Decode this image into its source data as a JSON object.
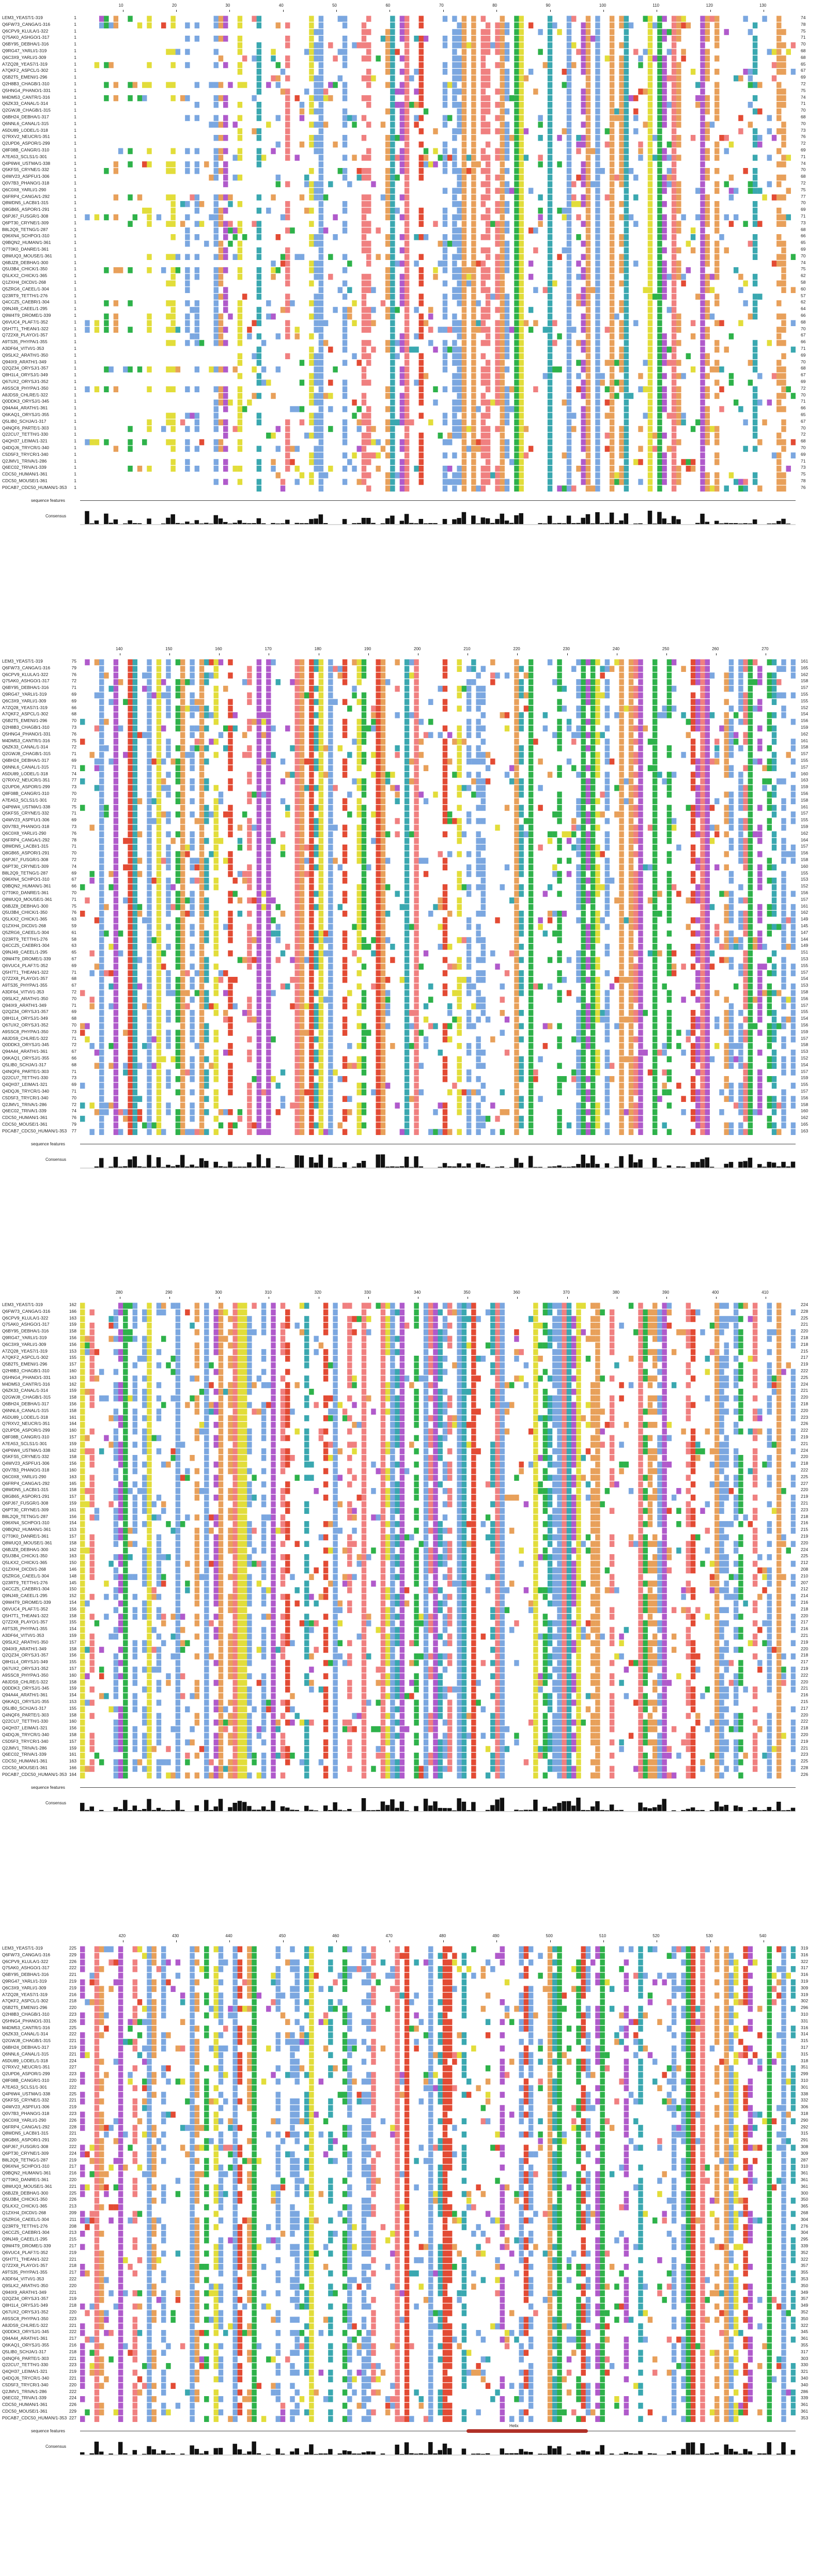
{
  "labels": {
    "sequence_features": "sequence features",
    "consensus": "Consensus",
    "helix": "Helix"
  },
  "colors": {
    "hydrophobic": "#7ba7e0",
    "positive": "#e34b34",
    "negative": "#b05acb",
    "polar": "#2eb24a",
    "cysteine": "#f08080",
    "glycine": "#e8a05a",
    "proline": "#e2dd3a",
    "aromatic": "#3aa8b0",
    "histogram": "#111111",
    "helix": "#b03028"
  },
  "sequences": [
    "LEM3_YEAST/1-319",
    "Q6FW73_CANGA/1-316",
    "Q6CPV9_KLULA/1-322",
    "Q75AK0_ASHGO/1-317",
    "Q6BY95_DEBHA/1-316",
    "Q9RG47_YARLI/1-319",
    "Q6C3X9_YARLI/1-309",
    "A7ZQ28_YEAS7/1-319",
    "A7QKF2_ASPCL/1-302",
    "Q5B2T5_EMENI/1-296",
    "Q2H8B3_CHAGB/1-310",
    "Q5HNG4_PHANO/1-331",
    "M4DM53_CANTR/1-316",
    "Q6ZK33_CANAL/1-314",
    "Q2GWJ8_CHAGB/1-315",
    "Q6BH24_DEBHA/1-317",
    "Q6NNL6_CANAL/1-315",
    "A5DU89_LODEL/1-318",
    "Q7RXV2_NEUCR/1-351",
    "Q2UPD6_ASPOR/1-299",
    "Q8F08B_CANGR/1-310",
    "A7EA53_SCLS1/1-301",
    "Q4P6W4_USTMA/1-338",
    "Q5KFS5_CRYNE/1-332",
    "Q4WV23_ASPFU/1-306",
    "Q0V7B3_PHANO/1-318",
    "Q6C0X8_YARLI/1-290",
    "Q6FRP4_CANGA/1-292",
    "Q8WDN5_LACBI/1-315",
    "Q8GB65_ASPOR/1-291",
    "Q6PJ67_FUSGR/1-308",
    "Q6PT30_CRYNE/1-309",
    "B8L2Q9_TETNG/1-287",
    "Q96XN4_SCHPO/1-310",
    "Q9BQN2_HUMAN/1-361",
    "Q7T0K0_DANRE/1-361",
    "Q8WUQ3_MOUSE/1-361",
    "Q6BJZ8_DEBHA/1-300",
    "Q5U3B4_CHICK/1-350",
    "Q5LKX2_CHICK/1-365",
    "Q1ZXH4_DICDI/1-268",
    "Q5ZRG6_CAEEL/1-304",
    "Q23RT9_TETTH/1-276",
    "Q4CCZ5_CAEBR/1-304",
    "Q9NJ49_CAEEL/1-295",
    "Q9W4T9_DROME/1-339",
    "Q6VUC4_PLAF7/1-352",
    "Q5H7T1_THEAN/1-322",
    "Q7Z2X8_PLAYO/1-357",
    "A9TS35_PHYPA/1-355",
    "A3DF64_VITVI/1-353",
    "Q9SLK2_ARATH/1-350",
    "Q94IX9_ARATH/1-349",
    "Q2QZ34_ORYSJ/1-357",
    "Q8H1L4_ORYSJ/1-349",
    "Q67UX2_ORYSJ/1-352",
    "A9SSC8_PHYPA/1-350",
    "A8JDS9_CHLRE/1-322",
    "Q0DDK3_ORYSJ/1-345",
    "Q94A44_ARATH/1-361",
    "Q6KAQ1_ORYSJ/1-355",
    "Q5LIB0_SCHJA/1-317",
    "Q4NQF6_PARTE/1-303",
    "Q22CU7_TETTH/1-330",
    "Q4QH37_LEIMA/1-321",
    "Q4DQJ6_TRYCR/1-340",
    "C5D5F3_TRYCR/1-340",
    "Q2JMV1_TRIVA/1-286",
    "Q6EC02_TRIVA/1-339",
    "CDC50_HUMAN/1-361",
    "CDC50_MOUSE/1-361",
    "P0CAB7_CDC50_HUMAN/1-353"
  ],
  "blocks": [
    {
      "ticks": [
        "10",
        "20",
        "30",
        "40",
        "50",
        "60",
        "70",
        "80",
        "90",
        "100",
        "110",
        "120",
        "130"
      ],
      "starts": [
        1,
        1,
        1,
        1,
        1,
        1,
        1,
        1,
        1,
        1,
        1,
        1,
        1,
        1,
        1,
        1,
        1,
        1,
        1,
        1,
        1,
        1,
        1,
        1,
        1,
        1,
        1,
        1,
        1,
        1,
        1,
        1,
        1,
        1,
        1,
        1,
        1,
        1,
        1,
        1,
        1,
        1,
        1,
        1,
        1,
        1,
        1,
        1,
        1,
        1,
        1,
        1,
        1,
        1,
        1,
        1,
        1,
        1,
        1,
        1,
        1,
        1,
        1,
        1,
        1,
        1,
        1,
        1,
        1,
        1,
        1,
        1
      ],
      "ends": [
        74,
        78,
        75,
        71,
        70,
        68,
        68,
        65,
        67,
        69,
        72,
        75,
        74,
        71,
        70,
        68,
        70,
        73,
        76,
        72,
        69,
        71,
        74,
        70,
        68,
        72,
        75,
        77,
        70,
        69,
        71,
        73,
        68,
        66,
        65,
        69,
        70,
        74,
        75,
        62,
        58,
        60,
        57,
        62,
        64,
        66,
        68,
        70,
        67,
        66,
        71,
        69,
        70,
        68,
        67,
        69,
        72,
        70,
        71,
        66,
        65,
        67,
        70,
        72,
        68,
        70,
        69,
        71,
        73,
        75,
        78,
        76
      ]
    },
    {
      "ticks": [
        "140",
        "150",
        "160",
        "170",
        "180",
        "190",
        "200",
        "210",
        "220",
        "230",
        "240",
        "250",
        "260",
        "270"
      ],
      "starts": [
        75,
        79,
        76,
        72,
        71,
        69,
        69,
        66,
        68,
        70,
        73,
        76,
        75,
        72,
        71,
        69,
        71,
        74,
        77,
        73,
        70,
        72,
        75,
        71,
        69,
        73,
        76,
        78,
        71,
        70,
        72,
        74,
        69,
        67,
        66,
        70,
        71,
        75,
        76,
        63,
        59,
        61,
        58,
        63,
        65,
        67,
        69,
        71,
        68,
        67,
        72,
        70,
        71,
        69,
        68,
        70,
        73,
        71,
        72,
        67,
        66,
        68,
        71,
        73,
        69,
        71,
        70,
        72,
        74,
        76,
        79,
        77
      ],
      "ends": [
        161,
        165,
        162,
        158,
        157,
        155,
        155,
        152,
        154,
        156,
        159,
        162,
        161,
        158,
        157,
        155,
        157,
        160,
        163,
        159,
        156,
        158,
        161,
        157,
        155,
        159,
        162,
        164,
        157,
        156,
        158,
        160,
        155,
        153,
        152,
        156,
        157,
        161,
        162,
        149,
        145,
        147,
        144,
        149,
        151,
        153,
        155,
        157,
        154,
        153,
        158,
        156,
        157,
        155,
        154,
        156,
        159,
        157,
        158,
        153,
        152,
        154,
        157,
        159,
        155,
        157,
        156,
        158,
        160,
        162,
        165,
        163
      ]
    },
    {
      "ticks": [
        "280",
        "290",
        "300",
        "310",
        "320",
        "330",
        "340",
        "350",
        "360",
        "370",
        "380",
        "390",
        "400",
        "410"
      ],
      "starts": [
        162,
        166,
        163,
        159,
        158,
        156,
        156,
        153,
        155,
        157,
        160,
        163,
        162,
        159,
        158,
        156,
        158,
        161,
        164,
        160,
        157,
        159,
        162,
        158,
        156,
        160,
        163,
        165,
        158,
        157,
        159,
        161,
        156,
        154,
        153,
        157,
        158,
        162,
        163,
        150,
        146,
        148,
        145,
        150,
        152,
        154,
        156,
        158,
        155,
        154,
        159,
        157,
        158,
        156,
        155,
        157,
        160,
        158,
        159,
        154,
        153,
        155,
        158,
        160,
        156,
        158,
        157,
        159,
        161,
        163,
        166,
        164
      ],
      "ends": [
        224,
        228,
        225,
        221,
        220,
        218,
        218,
        215,
        217,
        219,
        222,
        225,
        224,
        221,
        220,
        218,
        220,
        223,
        226,
        222,
        219,
        221,
        224,
        220,
        218,
        222,
        225,
        227,
        220,
        219,
        221,
        223,
        218,
        216,
        215,
        219,
        220,
        224,
        225,
        212,
        208,
        210,
        207,
        212,
        214,
        216,
        218,
        220,
        217,
        216,
        221,
        219,
        220,
        218,
        217,
        219,
        222,
        220,
        221,
        216,
        215,
        217,
        220,
        222,
        218,
        220,
        219,
        221,
        223,
        225,
        228,
        226
      ]
    },
    {
      "ticks": [
        "420",
        "430",
        "440",
        "450",
        "460",
        "470",
        "480",
        "490",
        "500",
        "510",
        "520",
        "530",
        "540"
      ],
      "starts": [
        225,
        229,
        226,
        222,
        221,
        219,
        219,
        216,
        218,
        220,
        223,
        226,
        225,
        222,
        221,
        219,
        221,
        224,
        227,
        223,
        220,
        222,
        225,
        221,
        219,
        223,
        226,
        228,
        221,
        220,
        222,
        224,
        219,
        217,
        216,
        220,
        221,
        225,
        226,
        213,
        209,
        211,
        208,
        213,
        215,
        217,
        219,
        221,
        218,
        217,
        222,
        220,
        221,
        219,
        218,
        220,
        223,
        221,
        222,
        217,
        216,
        218,
        221,
        223,
        219,
        221,
        220,
        222,
        224,
        226,
        229,
        227
      ],
      "ends": [
        319,
        316,
        322,
        317,
        316,
        319,
        309,
        319,
        302,
        296,
        310,
        331,
        316,
        314,
        315,
        317,
        315,
        318,
        351,
        299,
        310,
        301,
        338,
        332,
        306,
        318,
        290,
        292,
        315,
        291,
        308,
        309,
        287,
        310,
        361,
        361,
        361,
        300,
        350,
        365,
        268,
        304,
        276,
        304,
        295,
        339,
        352,
        322,
        357,
        355,
        353,
        350,
        349,
        357,
        349,
        352,
        350,
        322,
        345,
        361,
        355,
        317,
        303,
        330,
        321,
        340,
        340,
        286,
        339,
        361,
        361,
        353
      ]
    }
  ],
  "helix_block": 3
}
